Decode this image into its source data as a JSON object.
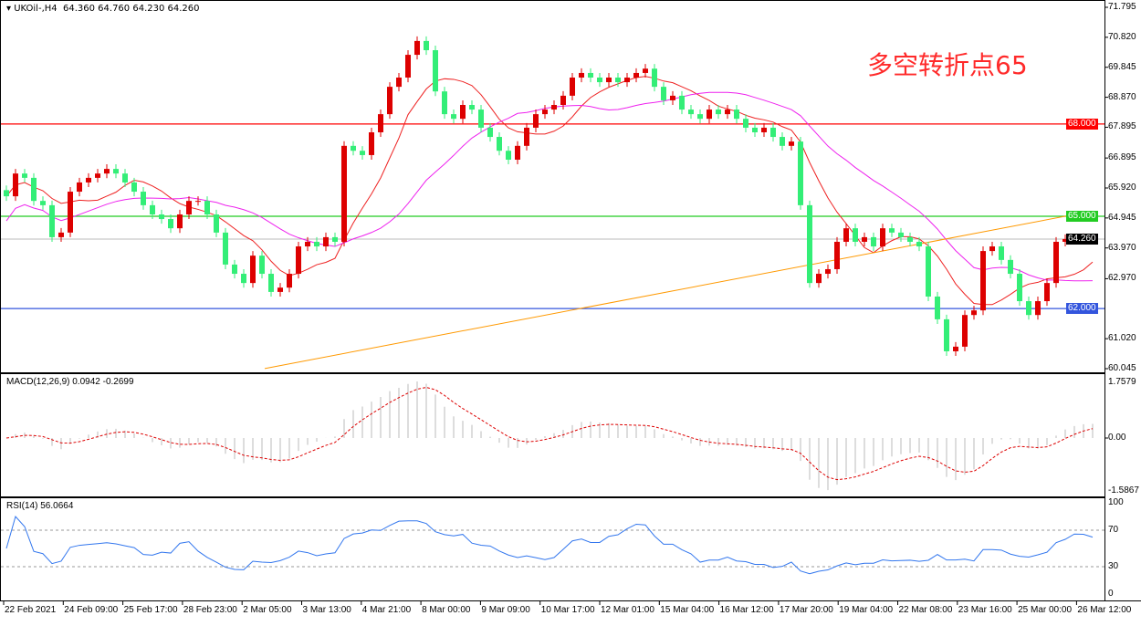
{
  "header": {
    "symbol": "UKOil-,H4",
    "ohlc": "64.360 64.760 64.230 64.260"
  },
  "annotation": "多空转折点65",
  "price_axis": {
    "min": 60.045,
    "max": 71.795,
    "ticks": [
      "71.795",
      "70.820",
      "69.845",
      "68.870",
      "67.895",
      "66.895",
      "65.920",
      "64.945",
      "63.970",
      "62.970",
      "61.020",
      "60.045"
    ]
  },
  "levels": [
    {
      "value": 68.0,
      "label": "68.000",
      "color": "#ff0000"
    },
    {
      "value": 65.0,
      "label": "65.000",
      "color": "#22cc22"
    },
    {
      "value": 62.0,
      "label": "62.000",
      "color": "#3355dd"
    }
  ],
  "current_price": {
    "value": 64.26,
    "label": "64.260"
  },
  "colors": {
    "bull": "#dd0000",
    "bear": "#33ee77",
    "ma_fast": "#ee2222",
    "ma_mid": "#ee22ee",
    "ma_slow": "#ff9900",
    "macd": "#bbbbbb",
    "signal": "#dd0000",
    "rsi": "#3377ee"
  },
  "closes": [
    65.65,
    66.39,
    66.25,
    65.5,
    65.36,
    64.32,
    64.47,
    65.8,
    66.1,
    66.25,
    66.39,
    66.54,
    66.39,
    66.1,
    65.8,
    65.36,
    65.06,
    64.91,
    64.61,
    65.06,
    65.5,
    65.5,
    65.06,
    64.47,
    63.43,
    63.13,
    62.83,
    63.72,
    63.13,
    62.54,
    62.68,
    63.13,
    64.02,
    64.17,
    64.02,
    64.32,
    64.17,
    67.29,
    67.13,
    66.99,
    67.73,
    68.32,
    69.21,
    69.51,
    70.25,
    70.7,
    70.4,
    69.06,
    68.32,
    68.17,
    68.62,
    68.47,
    67.88,
    67.58,
    67.13,
    66.84,
    67.29,
    67.88,
    68.32,
    68.47,
    68.62,
    68.92,
    69.51,
    69.66,
    69.51,
    69.36,
    69.51,
    69.36,
    69.51,
    69.66,
    69.8,
    69.21,
    68.77,
    68.92,
    68.47,
    68.32,
    68.17,
    68.47,
    68.32,
    68.47,
    68.17,
    67.88,
    67.73,
    67.88,
    67.58,
    67.29,
    67.43,
    65.36,
    62.83,
    63.13,
    63.28,
    64.17,
    64.61,
    64.17,
    64.32,
    64.02,
    64.61,
    64.47,
    64.32,
    64.17,
    64.02,
    62.39,
    61.65,
    60.61,
    60.76,
    61.79,
    61.94,
    63.87,
    64.02,
    63.58,
    63.13,
    62.24,
    61.79,
    62.24,
    62.83,
    64.17,
    64.26,
    64.26,
    64.29,
    64.26
  ],
  "ma_slow": {
    "start": 60.05,
    "end": 65.12
  },
  "macd": {
    "label": "MACD(12,26,9) 0.0942 -0.2699",
    "ticks": [
      "1.7579",
      "0.00",
      "-1.5867"
    ]
  },
  "rsi": {
    "label": "RSI(14) 56.0664",
    "ticks": [
      "100",
      "70",
      "30",
      "0"
    ]
  },
  "time_axis": [
    "22 Feb 2021",
    "24 Feb 09:00",
    "25 Feb 17:00",
    "28 Feb 23:00",
    "2 Mar 05:00",
    "3 Mar 13:00",
    "4 Mar 21:00",
    "8 Mar 00:00",
    "9 Mar 09:00",
    "10 Mar 17:00",
    "12 Mar 01:00",
    "15 Mar 04:00",
    "16 Mar 12:00",
    "17 Mar 20:00",
    "19 Mar 04:00",
    "22 Mar 08:00",
    "23 Mar 16:00",
    "25 Mar 00:00",
    "26 Mar 12:00"
  ]
}
